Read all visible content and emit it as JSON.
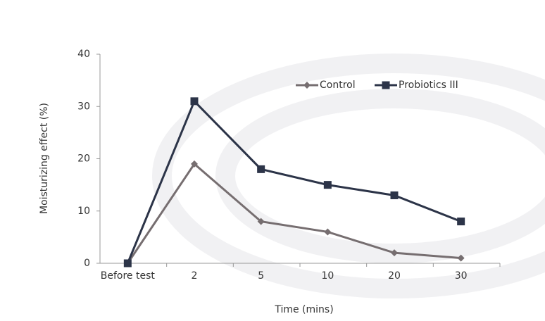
{
  "chart_data": {
    "type": "line",
    "xlabel": "Time (mins)",
    "ylabel": "Moisturizing effect (%)",
    "categories": [
      "Before test",
      "2",
      "5",
      "10",
      "20",
      "30"
    ],
    "series": [
      {
        "name": "Control",
        "color": "#766e70",
        "marker": "diamond",
        "values": [
          0,
          19,
          8,
          6,
          2,
          1
        ]
      },
      {
        "name": "Probiotics III",
        "color": "#2c3448",
        "marker": "square",
        "values": [
          0,
          31,
          18,
          15,
          13,
          8
        ]
      }
    ],
    "ylim": [
      0,
      40
    ],
    "yticks": [
      0,
      10,
      20,
      30,
      40
    ],
    "legend": "top-right"
  }
}
